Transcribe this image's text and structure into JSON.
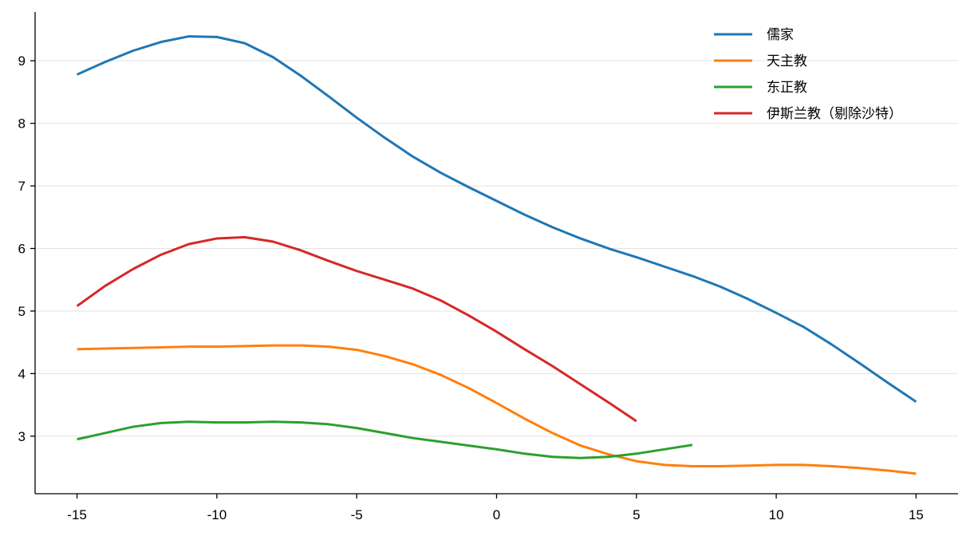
{
  "chart_data": {
    "type": "line",
    "title": "",
    "xlabel": "",
    "ylabel": "",
    "xlim": [
      -16.5,
      16.5
    ],
    "ylim": [
      2.08,
      9.78
    ],
    "xticks": [
      -15,
      -10,
      -5,
      0,
      5,
      10,
      15
    ],
    "yticks": [
      3,
      4,
      5,
      6,
      7,
      8,
      9
    ],
    "grid": "horizontal",
    "legend_position": "top-right",
    "series": [
      {
        "name": "儒家",
        "color": "#1f77b4",
        "x": [
          -15,
          -14,
          -13,
          -12,
          -11,
          -10,
          -9,
          -8,
          -7,
          -6,
          -5,
          -4,
          -3,
          -2,
          -1,
          0,
          1,
          2,
          3,
          4,
          5,
          6,
          7,
          8,
          9,
          10,
          11,
          12,
          13,
          14,
          15
        ],
        "y": [
          8.78,
          8.98,
          9.16,
          9.3,
          9.39,
          9.38,
          9.28,
          9.06,
          8.76,
          8.43,
          8.09,
          7.77,
          7.47,
          7.21,
          6.98,
          6.76,
          6.54,
          6.34,
          6.16,
          6.0,
          5.86,
          5.71,
          5.56,
          5.39,
          5.19,
          4.97,
          4.74,
          4.46,
          4.16,
          3.85,
          3.55
        ]
      },
      {
        "name": "天主教",
        "color": "#ff7f0e",
        "x": [
          -15,
          -14,
          -13,
          -12,
          -11,
          -10,
          -9,
          -8,
          -7,
          -6,
          -5,
          -4,
          -3,
          -2,
          -1,
          0,
          1,
          2,
          3,
          4,
          5,
          6,
          7,
          8,
          9,
          10,
          11,
          12,
          13,
          14,
          15
        ],
        "y": [
          4.39,
          4.4,
          4.41,
          4.42,
          4.43,
          4.43,
          4.44,
          4.45,
          4.45,
          4.43,
          4.38,
          4.28,
          4.15,
          3.98,
          3.77,
          3.53,
          3.28,
          3.05,
          2.85,
          2.71,
          2.6,
          2.54,
          2.52,
          2.52,
          2.53,
          2.54,
          2.54,
          2.52,
          2.49,
          2.45,
          2.4
        ]
      },
      {
        "name": "东正教",
        "color": "#2ca02c",
        "x": [
          -15,
          -14,
          -13,
          -12,
          -11,
          -10,
          -9,
          -8,
          -7,
          -6,
          -5,
          -4,
          -3,
          -2,
          -1,
          0,
          1,
          2,
          3,
          4,
          5,
          6,
          7
        ],
        "y": [
          2.95,
          3.05,
          3.15,
          3.21,
          3.23,
          3.22,
          3.22,
          3.23,
          3.22,
          3.19,
          3.13,
          3.05,
          2.97,
          2.91,
          2.85,
          2.79,
          2.72,
          2.67,
          2.65,
          2.67,
          2.72,
          2.79,
          2.86
        ]
      },
      {
        "name": "伊斯兰教（剔除沙特）",
        "color": "#d62728",
        "x": [
          -15,
          -14,
          -13,
          -12,
          -11,
          -10,
          -9,
          -8,
          -7,
          -6,
          -5,
          -4,
          -3,
          -2,
          -1,
          0,
          1,
          2,
          3,
          4,
          5
        ],
        "y": [
          5.08,
          5.4,
          5.67,
          5.9,
          6.07,
          6.16,
          6.18,
          6.11,
          5.97,
          5.8,
          5.64,
          5.5,
          5.36,
          5.17,
          4.93,
          4.67,
          4.39,
          4.12,
          3.83,
          3.54,
          3.24
        ]
      }
    ]
  }
}
